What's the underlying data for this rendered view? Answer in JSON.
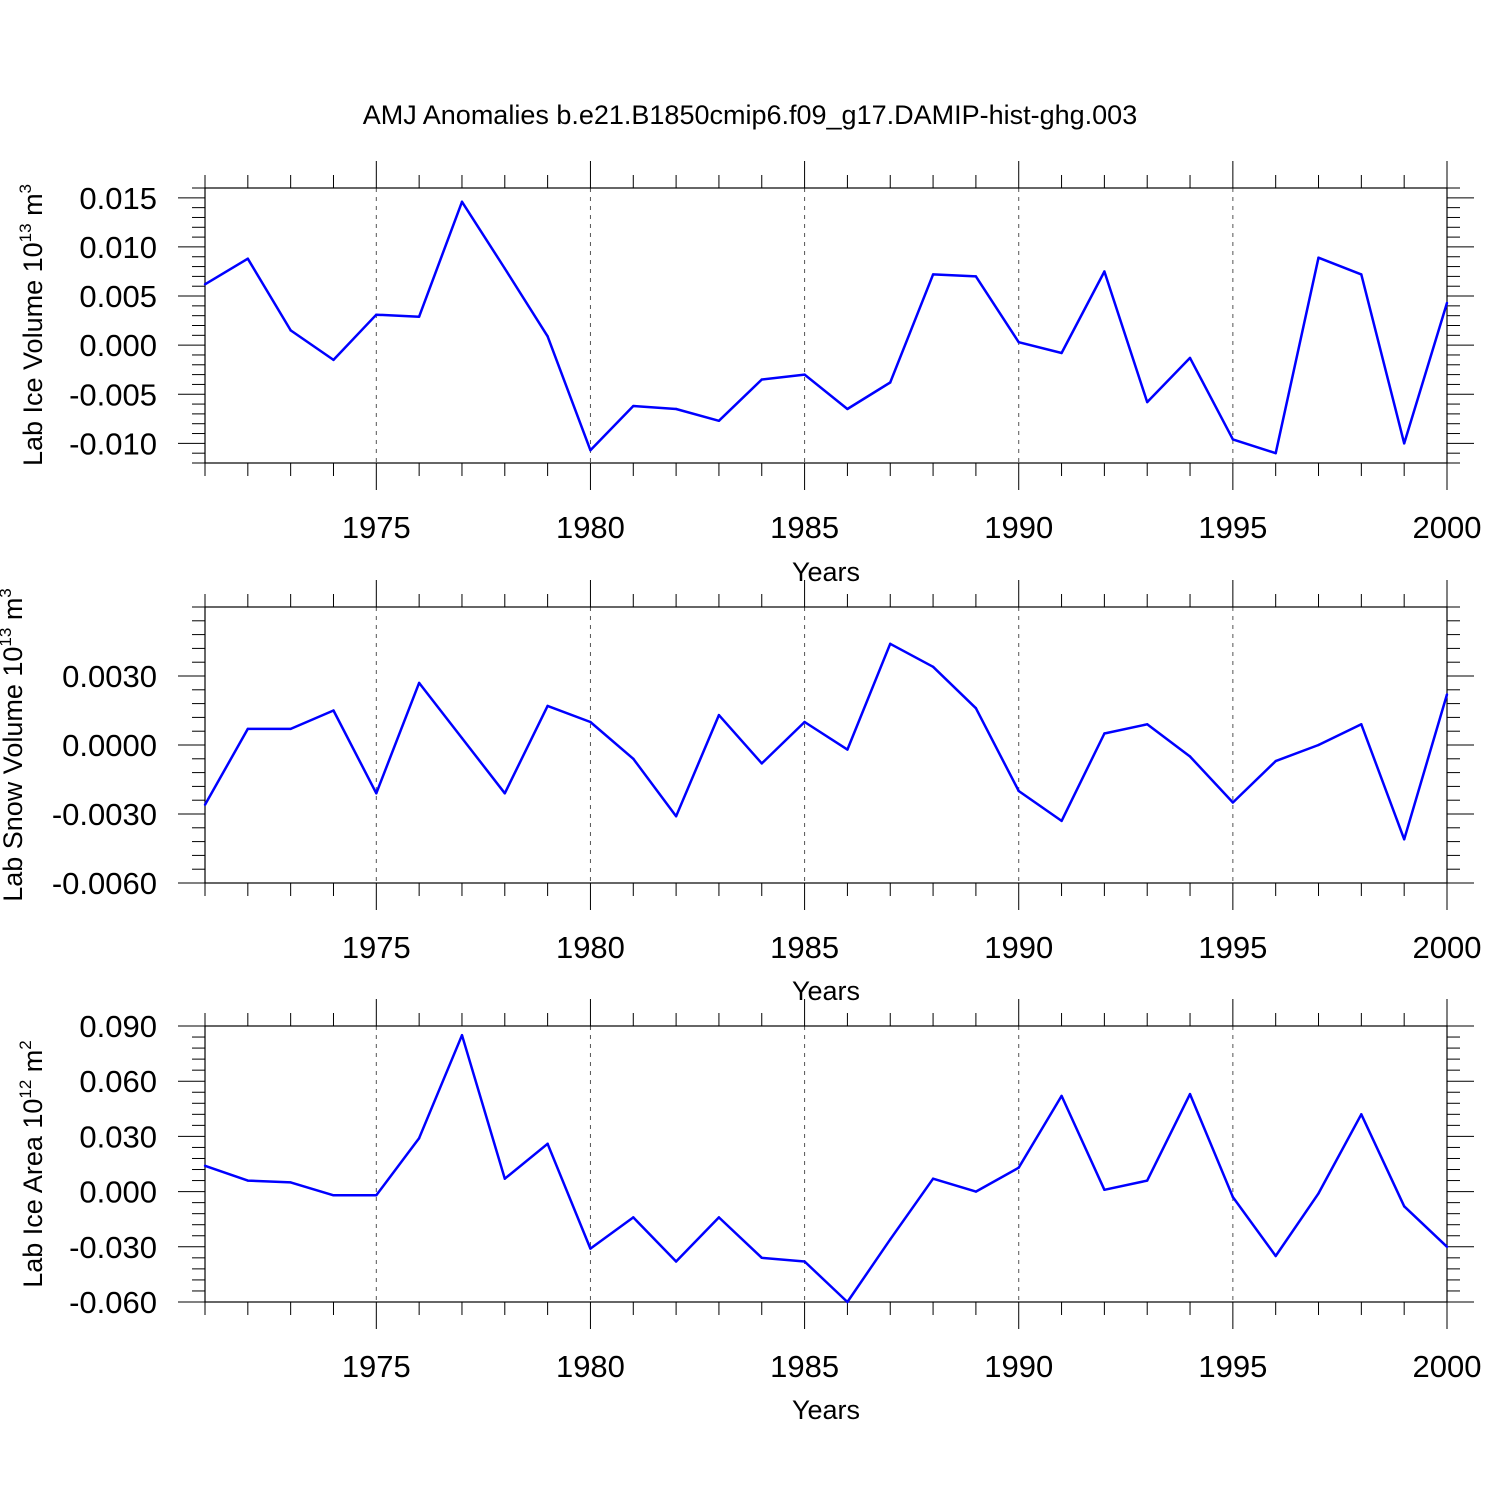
{
  "title": "AMJ Anomalies b.e21.B1850cmip6.f09_g17.DAMIP-hist-ghg.003",
  "line_color": "#0000ff",
  "chart_data": [
    {
      "type": "line",
      "xlabel": "Years",
      "ylabel": {
        "text": "Lab Ice Volume 10",
        "sup": "13",
        "unit": " m",
        "unit_sup": "3"
      },
      "xlim": [
        1971,
        2000
      ],
      "ylim": [
        -0.012,
        0.016
      ],
      "xticks": [
        1975,
        1980,
        1985,
        1990,
        1995,
        2000
      ],
      "xtick_labels": [
        "1975",
        "1980",
        "1985",
        "1990",
        "1995",
        "2000"
      ],
      "yticks": [
        0.015,
        0.01,
        0.005,
        0.0,
        -0.005,
        -0.01
      ],
      "ytick_labels": [
        "0.015",
        "0.010",
        "0.005",
        "0.000",
        "-0.005",
        "-0.010"
      ],
      "x_minor_step": 1,
      "y_minor_step": 0.001,
      "grid": "vertical dashed at major x ticks",
      "series": [
        {
          "x": [
            1971,
            1972,
            1973,
            1974,
            1975,
            1976,
            1977,
            1978,
            1979,
            1980,
            1981,
            1982,
            1983,
            1984,
            1985,
            1986,
            1987,
            1988,
            1989,
            1990,
            1991,
            1992,
            1993,
            1994,
            1995,
            1996,
            1997,
            1998,
            1999,
            2000
          ],
          "values": [
            0.0062,
            0.0088,
            0.0015,
            -0.0015,
            0.0031,
            0.0029,
            0.0146,
            0.0078,
            0.0009,
            -0.0107,
            -0.0062,
            -0.0065,
            -0.0077,
            -0.0035,
            -0.003,
            -0.0065,
            -0.0038,
            0.0072,
            0.007,
            0.0003,
            -0.0008,
            0.0075,
            -0.0058,
            -0.0013,
            -0.0096,
            -0.011,
            0.0089,
            0.0072,
            -0.01,
            0.0043
          ]
        }
      ]
    },
    {
      "type": "line",
      "xlabel": "Years",
      "ylabel": {
        "text": "Lab Snow Volume 10",
        "sup": "13",
        "unit": " m",
        "unit_sup": "3"
      },
      "xlim": [
        1971,
        2000
      ],
      "ylim": [
        -0.006,
        0.006
      ],
      "xticks": [
        1975,
        1980,
        1985,
        1990,
        1995,
        2000
      ],
      "xtick_labels": [
        "1975",
        "1980",
        "1985",
        "1990",
        "1995",
        "2000"
      ],
      "yticks": [
        0.003,
        0.0,
        -0.003,
        -0.006
      ],
      "ytick_labels": [
        "0.0030",
        "0.0000",
        "-0.0030",
        "-0.0060"
      ],
      "x_minor_step": 1,
      "y_minor_step": 0.0006,
      "grid": "vertical dashed at major x ticks",
      "series": [
        {
          "x": [
            1971,
            1972,
            1973,
            1974,
            1975,
            1976,
            1977,
            1978,
            1979,
            1980,
            1981,
            1982,
            1983,
            1984,
            1985,
            1986,
            1987,
            1988,
            1989,
            1990,
            1991,
            1992,
            1993,
            1994,
            1995,
            1996,
            1997,
            1998,
            1999,
            2000
          ],
          "values": [
            -0.0026,
            0.0007,
            0.0007,
            0.0015,
            -0.0021,
            0.0027,
            0.0003,
            -0.0021,
            0.0017,
            0.001,
            -0.0006,
            -0.0031,
            0.0013,
            -0.0008,
            0.001,
            -0.0002,
            0.0044,
            0.0034,
            0.0016,
            -0.002,
            -0.0033,
            0.0005,
            0.0009,
            -0.0005,
            -0.0025,
            -0.0007,
            0.0,
            0.0009,
            -0.0041,
            0.0022
          ]
        }
      ]
    },
    {
      "type": "line",
      "xlabel": "Years",
      "ylabel": {
        "text": "Lab Ice Area 10",
        "sup": "12",
        "unit": " m",
        "unit_sup": "2"
      },
      "xlim": [
        1971,
        2000
      ],
      "ylim": [
        -0.06,
        0.09
      ],
      "xticks": [
        1975,
        1980,
        1985,
        1990,
        1995,
        2000
      ],
      "xtick_labels": [
        "1975",
        "1980",
        "1985",
        "1990",
        "1995",
        "2000"
      ],
      "yticks": [
        0.09,
        0.06,
        0.03,
        0.0,
        -0.03,
        -0.06
      ],
      "ytick_labels": [
        "0.090",
        "0.060",
        "0.030",
        "0.000",
        "-0.030",
        "-0.060"
      ],
      "x_minor_step": 1,
      "y_minor_step": 0.006,
      "grid": "vertical dashed at major x ticks",
      "series": [
        {
          "x": [
            1971,
            1972,
            1973,
            1974,
            1975,
            1976,
            1977,
            1978,
            1979,
            1980,
            1981,
            1982,
            1983,
            1984,
            1985,
            1986,
            1987,
            1988,
            1989,
            1990,
            1991,
            1992,
            1993,
            1994,
            1995,
            1996,
            1997,
            1998,
            1999,
            2000
          ],
          "values": [
            0.014,
            0.006,
            0.005,
            -0.002,
            -0.002,
            0.029,
            0.085,
            0.007,
            0.026,
            -0.031,
            -0.014,
            -0.038,
            -0.014,
            -0.036,
            -0.038,
            -0.06,
            -0.026,
            0.007,
            0.0,
            0.013,
            0.052,
            0.001,
            0.006,
            0.053,
            -0.003,
            -0.035,
            -0.001,
            0.042,
            -0.008,
            -0.03
          ]
        }
      ]
    }
  ]
}
